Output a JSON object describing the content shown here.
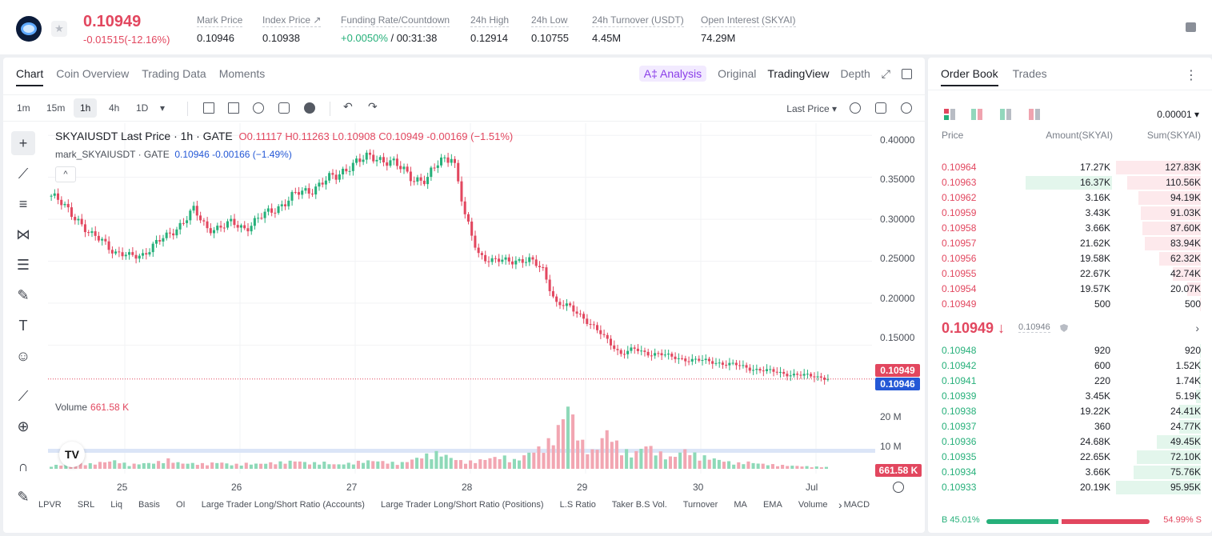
{
  "header": {
    "price": "0.10949",
    "change": "-0.01515(-12.16%)",
    "stats": [
      {
        "label": "Mark Price",
        "value": "0.10946"
      },
      {
        "label": "Index Price ↗",
        "value": "0.10938"
      },
      {
        "label": "Funding Rate/Countdown",
        "value_green": "+0.0050%",
        "value": " / 00:31:38"
      },
      {
        "label": "24h High",
        "value": "0.12914"
      },
      {
        "label": "24h Low",
        "value": "0.10755"
      },
      {
        "label": "24h Turnover (USDT)",
        "value": "4.45M"
      },
      {
        "label": "Open Interest (SKYAI)",
        "value": "74.29M"
      }
    ]
  },
  "chart_tabs": [
    "Chart",
    "Coin Overview",
    "Trading Data",
    "Moments"
  ],
  "chart_views": {
    "analysis": "A‡ Analysis",
    "original": "Original",
    "tradingview": "TradingView",
    "depth": "Depth"
  },
  "timeframes": [
    "1m",
    "15m",
    "1h",
    "4h",
    "1D"
  ],
  "timeframe_dropdown": "▾",
  "last_price_selector": "Last Price ▾",
  "legend": {
    "main": "SKYAIUSDT Last Price · 1h · GATE",
    "ohlc": "O0.11117  H0.11263  L0.10908  C0.10949  -0.00169  (−1.51%)",
    "mark_label": "mark_SKYAIUSDT · GATE",
    "mark_values": "0.10946  -0.00166  (−1.49%)",
    "volume_label": "Volume",
    "volume_value": "661.58 K"
  },
  "collapse_label": "^",
  "tv_logo": "TV",
  "price_tags": {
    "last": "0.10949",
    "mark": "0.10946",
    "volume": "661.58 K"
  },
  "y_axis": [
    "0.40000",
    "0.35000",
    "0.30000",
    "0.25000",
    "0.20000",
    "0.15000"
  ],
  "vol_axis": [
    "20 M",
    "10 M"
  ],
  "x_axis": [
    "25",
    "26",
    "27",
    "28",
    "29",
    "30",
    "Jul"
  ],
  "indicators": [
    "LPVR",
    "SRL",
    "Liq",
    "Basis",
    "OI",
    "Large Trader Long/Short Ratio (Accounts)",
    "Large Trader Long/Short Ratio (Positions)",
    "L.S Ratio",
    "Taker B.S Vol.",
    "Turnover",
    "MA",
    "EMA",
    "Volume",
    "MACD"
  ],
  "indicator_next": "›",
  "colors": {
    "up": "#26b07a",
    "down": "#e2475f",
    "mark": "#2458d6"
  },
  "chart_data": {
    "type": "candlestick",
    "symbol": "SKYAIUSDT",
    "interval": "1h",
    "x_ticks": [
      "25",
      "26",
      "27",
      "28",
      "29",
      "30",
      "Jul"
    ],
    "ylim": [
      0.1,
      0.4
    ],
    "close_path": [
      0.328,
      0.315,
      0.302,
      0.28,
      0.275,
      0.26,
      0.255,
      0.258,
      0.27,
      0.28,
      0.295,
      0.31,
      0.29,
      0.29,
      0.295,
      0.29,
      0.3,
      0.31,
      0.32,
      0.33,
      0.335,
      0.345,
      0.35,
      0.365,
      0.37,
      0.375,
      0.37,
      0.36,
      0.35,
      0.345,
      0.37,
      0.378,
      0.3,
      0.26,
      0.25,
      0.25,
      0.252,
      0.25,
      0.24,
      0.2,
      0.195,
      0.185,
      0.17,
      0.155,
      0.14,
      0.145,
      0.14,
      0.14,
      0.135,
      0.133,
      0.132,
      0.13,
      0.128,
      0.126,
      0.122,
      0.12,
      0.118,
      0.115,
      0.114,
      0.113,
      0.11
    ],
    "volume_path": [
      1.2,
      1.5,
      2.0,
      1.8,
      2.5,
      3.0,
      1.5,
      2.0,
      2.2,
      3.5,
      2.0,
      2.0,
      1.8,
      2.5,
      1.5,
      2.0,
      1.8,
      2.2,
      2.5,
      3.0,
      2.0,
      2.5,
      1.5,
      2.0,
      2.8,
      3.0,
      2.5,
      2.0,
      3.5,
      5.0,
      6.0,
      4.0,
      2.5,
      3.0,
      4.0,
      4.5,
      3.0,
      6.0,
      8.0,
      12.0,
      24.0,
      10.0,
      6.0,
      14.0,
      8.0,
      5.0,
      9.0,
      6.0,
      4.0,
      7.0,
      5.0,
      4.0,
      3.0,
      2.0,
      2.5,
      1.8,
      1.5,
      1.2,
      1.0,
      0.8,
      0.66
    ],
    "last_close": 0.10949,
    "mark_price": 0.10946
  },
  "orderbook": {
    "tabs": [
      "Order Book",
      "Trades"
    ],
    "precision": "0.00001 ▾",
    "headers": {
      "price": "Price",
      "amount": "Amount(SKYAI)",
      "sum": "Sum(SKYAI)"
    },
    "asks": [
      {
        "price": "0.10964",
        "amount": "17.27K",
        "sum": "127.83K",
        "depth": 1.0
      },
      {
        "price": "0.10963",
        "amount": "16.37K",
        "sum": "110.56K",
        "depth": 0.865,
        "hl": 0.52
      },
      {
        "price": "0.10962",
        "amount": "3.16K",
        "sum": "94.19K",
        "depth": 0.737
      },
      {
        "price": "0.10959",
        "amount": "3.43K",
        "sum": "91.03K",
        "depth": 0.712
      },
      {
        "price": "0.10958",
        "amount": "3.66K",
        "sum": "87.60K",
        "depth": 0.685
      },
      {
        "price": "0.10957",
        "amount": "21.62K",
        "sum": "83.94K",
        "depth": 0.657
      },
      {
        "price": "0.10956",
        "amount": "19.58K",
        "sum": "62.32K",
        "depth": 0.488
      },
      {
        "price": "0.10955",
        "amount": "22.67K",
        "sum": "42.74K",
        "depth": 0.334
      },
      {
        "price": "0.10954",
        "amount": "19.57K",
        "sum": "20.07K",
        "depth": 0.157
      },
      {
        "price": "0.10949",
        "amount": "500",
        "sum": "500",
        "depth": 0.004
      }
    ],
    "mid": {
      "price": "0.10949 ↓",
      "mark": "0.10946",
      "arrow": "›"
    },
    "bids": [
      {
        "price": "0.10948",
        "amount": "920",
        "sum": "920",
        "depth": 0.01
      },
      {
        "price": "0.10942",
        "amount": "600",
        "sum": "1.52K",
        "depth": 0.016
      },
      {
        "price": "0.10941",
        "amount": "220",
        "sum": "1.74K",
        "depth": 0.018
      },
      {
        "price": "0.10939",
        "amount": "3.45K",
        "sum": "5.19K",
        "depth": 0.054
      },
      {
        "price": "0.10938",
        "amount": "19.22K",
        "sum": "24.41K",
        "depth": 0.254
      },
      {
        "price": "0.10937",
        "amount": "360",
        "sum": "24.77K",
        "depth": 0.258
      },
      {
        "price": "0.10936",
        "amount": "24.68K",
        "sum": "49.45K",
        "depth": 0.515
      },
      {
        "price": "0.10935",
        "amount": "22.65K",
        "sum": "72.10K",
        "depth": 0.751
      },
      {
        "price": "0.10934",
        "amount": "3.66K",
        "sum": "75.76K",
        "depth": 0.79
      },
      {
        "price": "0.10933",
        "amount": "20.19K",
        "sum": "95.95K",
        "depth": 1.0
      }
    ],
    "ratio": {
      "buy_label": "B 45.01%",
      "sell_label": "54.99% S",
      "buy_pct": 45.01
    }
  }
}
